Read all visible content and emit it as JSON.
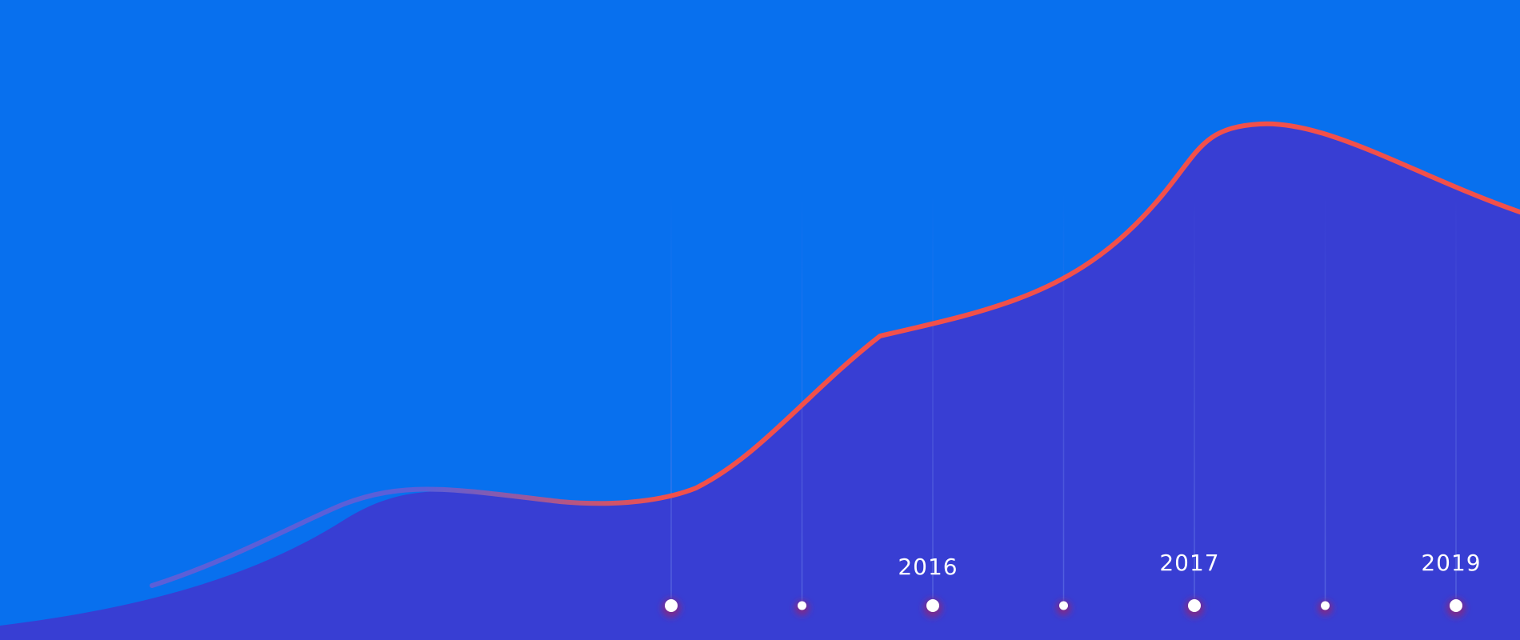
{
  "chart_data": {
    "type": "area",
    "title": "",
    "xlabel": "",
    "ylabel": "",
    "grid": false,
    "legend": "none",
    "colors": {
      "background": "#0870ee",
      "area_fill": "#383ed3",
      "line_left": "#5b5fd8",
      "line_right": "#f2504a",
      "marker": "#ffffff",
      "marker_glow": "#7a2a8f",
      "guide": "#6a7ee8"
    },
    "milestones": [
      {
        "year": "",
        "major": true
      },
      {
        "year": "",
        "major": false
      },
      {
        "year": "2016",
        "major": true
      },
      {
        "year": "",
        "major": false
      },
      {
        "year": "2017",
        "major": true
      },
      {
        "year": "",
        "major": false
      },
      {
        "year": "2019",
        "major": true
      }
    ]
  }
}
